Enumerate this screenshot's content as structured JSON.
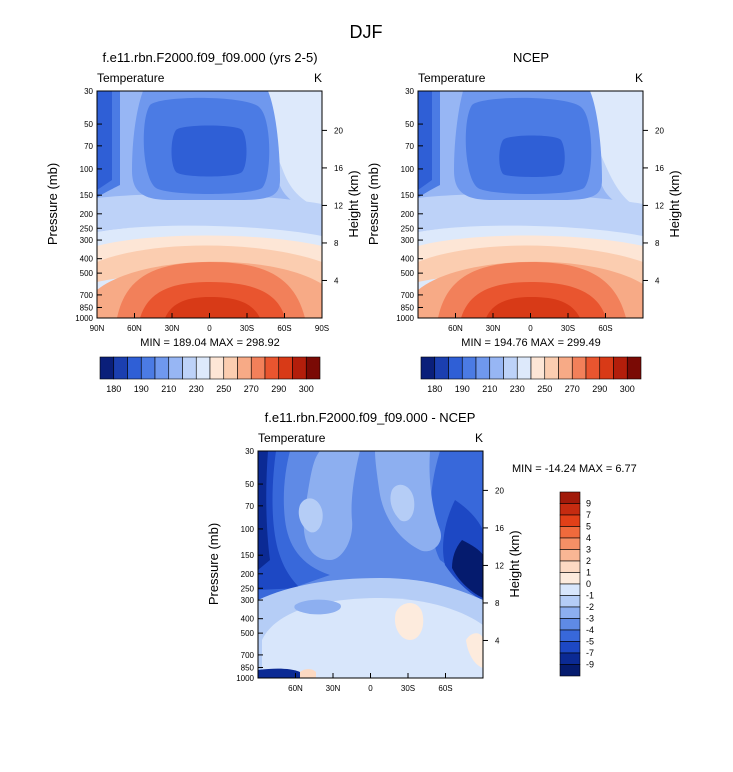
{
  "page": {
    "title": "DJF"
  },
  "chart_data": [
    {
      "type": "heatmap",
      "title": "f.e11.rbn.F2000.f09_f09.000 (yrs 2-5)",
      "left_label": "Temperature",
      "right_label": "K",
      "ylabel": "Pressure (mb)",
      "ylabel_right": "Height (km)",
      "x_ticks": [
        "90N",
        "60N",
        "30N",
        "0",
        "30S",
        "60S",
        "90S"
      ],
      "y_ticks": [
        30,
        50,
        70,
        100,
        150,
        200,
        250,
        300,
        400,
        500,
        700,
        850,
        1000
      ],
      "y_right_ticks": [
        20,
        16,
        12,
        8,
        4
      ],
      "ylim": [
        1000,
        30
      ],
      "min_max_text": "MIN = 189.04  MAX = 298.92",
      "min": 189.04,
      "max": 298.92,
      "colorbar_labels": [
        "180",
        "190",
        "210",
        "230",
        "250",
        "270",
        "290",
        "300"
      ]
    },
    {
      "type": "heatmap",
      "title": "NCEP",
      "left_label": "Temperature",
      "right_label": "K",
      "ylabel": "Pressure (mb)",
      "ylabel_right": "Height (km)",
      "x_ticks": [
        "60N",
        "30N",
        "0",
        "30S",
        "60S"
      ],
      "y_ticks": [
        30,
        50,
        70,
        100,
        150,
        200,
        250,
        300,
        400,
        500,
        700,
        850,
        1000
      ],
      "y_right_ticks": [
        20,
        16,
        12,
        8,
        4
      ],
      "ylim": [
        1000,
        30
      ],
      "min_max_text": "MIN = 194.76  MAX = 299.49",
      "min": 194.76,
      "max": 299.49,
      "colorbar_labels": [
        "180",
        "190",
        "210",
        "230",
        "250",
        "270",
        "290",
        "300"
      ]
    },
    {
      "type": "heatmap",
      "title": "f.e11.rbn.F2000.f09_f09.000 - NCEP",
      "left_label": "Temperature",
      "right_label": "K",
      "ylabel": "Pressure (mb)",
      "ylabel_right": "Height (km)",
      "x_ticks": [
        "60N",
        "30N",
        "0",
        "30S",
        "60S"
      ],
      "y_ticks": [
        30,
        50,
        70,
        100,
        150,
        200,
        250,
        300,
        400,
        500,
        700,
        850,
        1000
      ],
      "y_right_ticks": [
        20,
        16,
        12,
        8,
        4
      ],
      "ylim": [
        1000,
        30
      ],
      "min_max_text": "MIN = -14.24  MAX =  6.77",
      "min": -14.24,
      "max": 6.77,
      "colorbar_labels": [
        "9",
        "7",
        "5",
        "4",
        "3",
        "2",
        "1",
        "0",
        "-1",
        "-2",
        "-3",
        "-4",
        "-5",
        "-7",
        "-9"
      ]
    }
  ],
  "colors": {
    "temperature_palette": [
      "#0a1f7a",
      "#1b3fb0",
      "#2f5fd6",
      "#4b7be4",
      "#6f98ee",
      "#97b6f4",
      "#bdd2f8",
      "#dde9fb",
      "#fde6d6",
      "#fbcdb0",
      "#f7aa86",
      "#f2805a",
      "#e9552f",
      "#d83a17",
      "#b31e0b",
      "#7a0a05"
    ],
    "difference_palette": [
      "#a11a0a",
      "#c52b10",
      "#e24018",
      "#f06a3c",
      "#f59066",
      "#f9b694",
      "#fcd9c2",
      "#fdebdd",
      "#d8e6fb",
      "#b5cdf6",
      "#8daff0",
      "#5f8ae6",
      "#3868da",
      "#1d48c4",
      "#0b2a94",
      "#051b6e"
    ]
  }
}
